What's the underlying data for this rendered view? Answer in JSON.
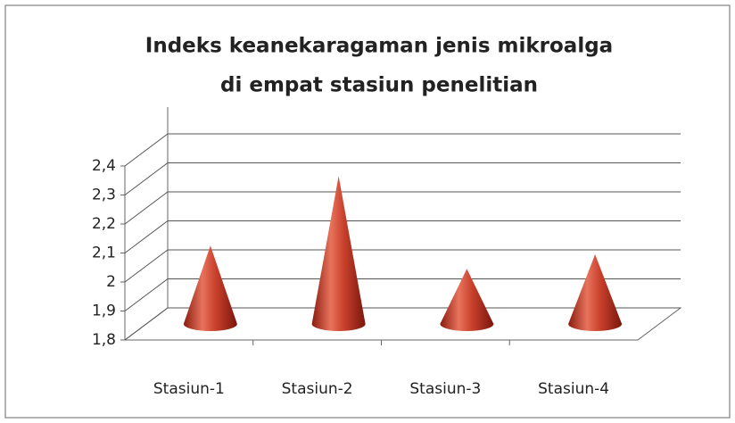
{
  "chart_data": {
    "type": "cone",
    "title": "Indeks keanekaragaman jenis mikroalga",
    "subtitle": "di empat stasiun penelitian",
    "categories": [
      "Stasiun-1",
      "Stasiun-2",
      "Stasiun-3",
      "Stasiun-4"
    ],
    "values": [
      2.07,
      2.31,
      1.99,
      2.04
    ],
    "color": "#c8402c",
    "ylim": [
      1.8,
      2.4
    ],
    "yticks": [
      {
        "value": 1.8,
        "label": "1,8"
      },
      {
        "value": 1.9,
        "label": "1,9"
      },
      2,
      {
        "value": 2.1,
        "label": "2,1"
      },
      {
        "value": 2.2,
        "label": "2,2"
      },
      {
        "value": 2.3,
        "label": "2,3"
      },
      {
        "value": 2.4,
        "label": "2,4"
      }
    ],
    "grid": true
  }
}
